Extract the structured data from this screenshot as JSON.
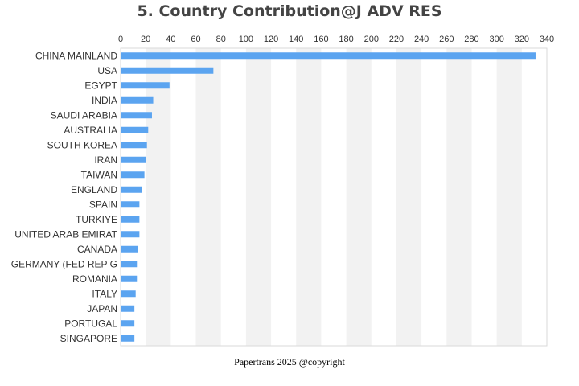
{
  "chart_data": {
    "type": "bar",
    "orientation": "horizontal",
    "title": "5. Country Contribution@J ADV RES",
    "xlabel": "",
    "ylabel": "",
    "xlim": [
      0,
      340
    ],
    "x_ticks": [
      0,
      20,
      40,
      60,
      80,
      100,
      120,
      140,
      160,
      180,
      200,
      220,
      240,
      260,
      280,
      300,
      320,
      340
    ],
    "x_axis_position": "top",
    "grid": "alternating vertical bands",
    "categories": [
      "CHINA MAINLAND",
      "USA",
      "EGYPT",
      "INDIA",
      "SAUDI ARABIA",
      "AUSTRALIA",
      "SOUTH KOREA",
      "IRAN",
      "TAIWAN",
      "ENGLAND",
      "SPAIN",
      "TURKIYE",
      "UNITED ARAB EMIRAT",
      "CANADA",
      "GERMANY (FED REP G",
      "ROMANIA",
      "ITALY",
      "JAPAN",
      "PORTUGAL",
      "SINGAPORE"
    ],
    "values": [
      331,
      74,
      39,
      26,
      25,
      22,
      21,
      20,
      19,
      17,
      15,
      15,
      15,
      14,
      13,
      13,
      12,
      11,
      11,
      11
    ],
    "bar_color": "#5ba4f0",
    "band_color": "#f2f2f2"
  },
  "footer": "Papertrans 2025 @copyright"
}
